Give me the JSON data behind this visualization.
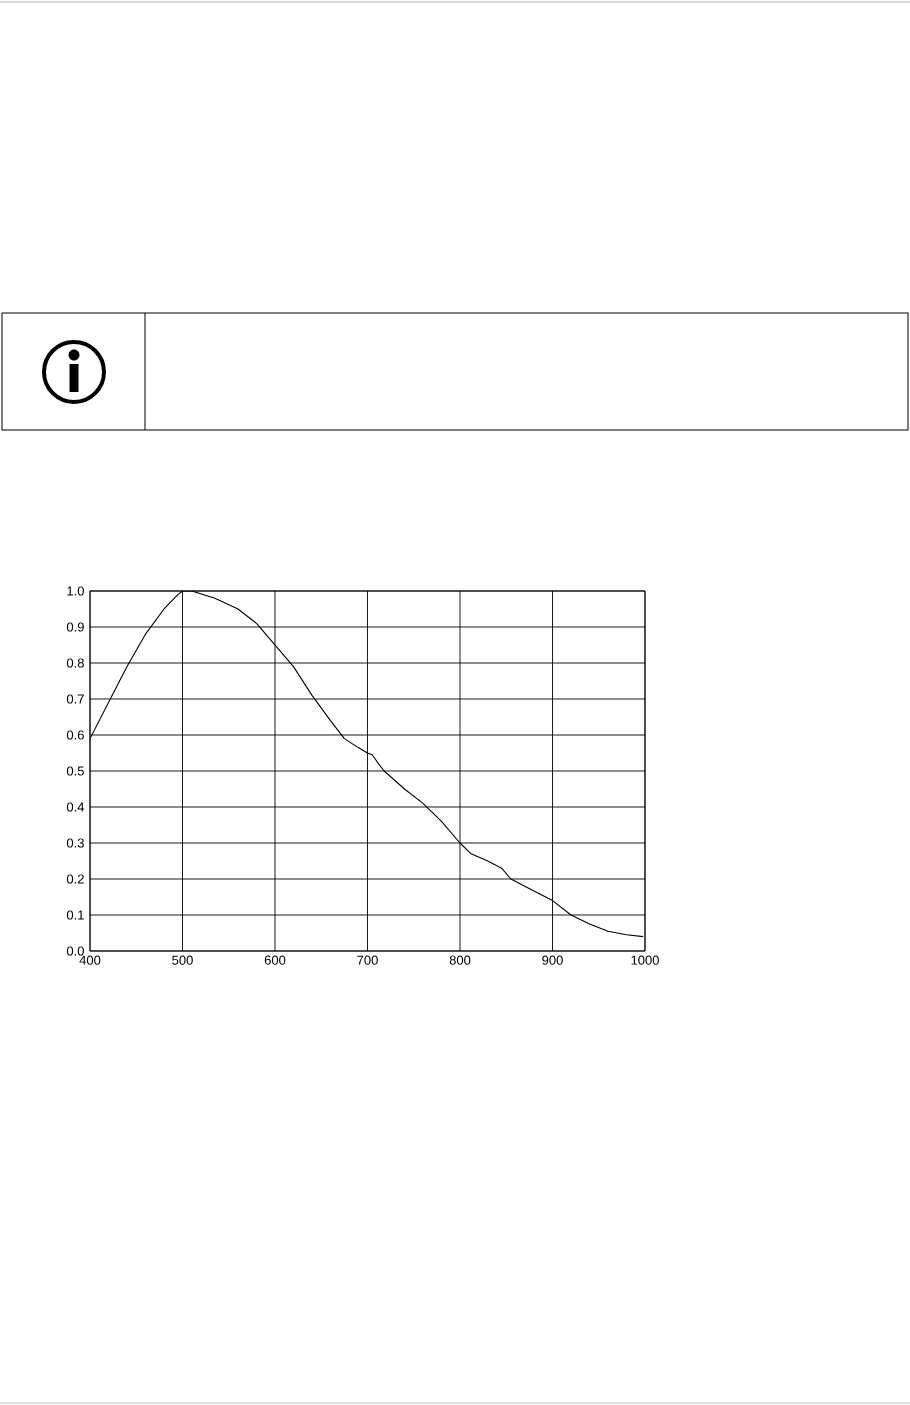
{
  "chart_data": {
    "type": "line",
    "color": "#000000",
    "grid": true,
    "marker": "none",
    "line_style": "solid",
    "x": [
      400,
      420,
      440,
      460,
      480,
      495,
      500,
      510,
      535,
      560,
      580,
      600,
      620,
      640,
      660,
      675,
      690,
      700,
      705,
      712,
      718,
      740,
      760,
      780,
      800,
      812,
      830,
      845,
      855,
      870,
      900,
      920,
      940,
      960,
      980,
      998
    ],
    "values": [
      0.59,
      0.69,
      0.79,
      0.88,
      0.95,
      0.99,
      1.0,
      1.0,
      0.98,
      0.95,
      0.91,
      0.85,
      0.79,
      0.71,
      0.64,
      0.59,
      0.565,
      0.55,
      0.545,
      0.52,
      0.5,
      0.45,
      0.41,
      0.36,
      0.3,
      0.27,
      0.25,
      0.23,
      0.2,
      0.18,
      0.14,
      0.1,
      0.075,
      0.055,
      0.045,
      0.04
    ],
    "xlim": [
      400,
      1000
    ],
    "ylim": [
      0,
      1
    ],
    "xticks": [
      400,
      500,
      600,
      700,
      800,
      900,
      1000
    ],
    "yticks": [
      {
        "value": 0,
        "label": "0.0"
      },
      0.1,
      0.2,
      0.3,
      0.4,
      0.5,
      0.6,
      0.7,
      0.8,
      0.9,
      {
        "value": 1,
        "label": "1.0"
      }
    ]
  }
}
